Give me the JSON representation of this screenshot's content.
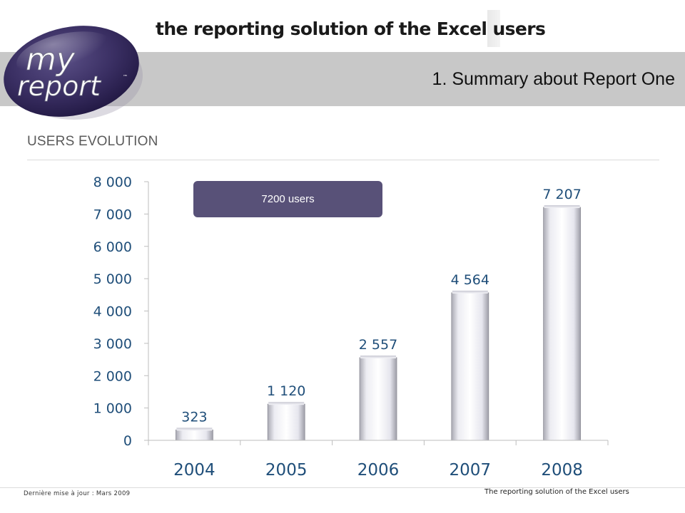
{
  "header": {
    "tagline": "the reporting solution of the Excel users",
    "page_title": "1. Summary about Report One",
    "logo": {
      "line1": "my",
      "line2": "report",
      "trademark": "™"
    }
  },
  "section": {
    "title": "USERS EVOLUTION"
  },
  "callout": {
    "text": "7200 users"
  },
  "colors": {
    "header_band": "#c8c8c8",
    "logo_purple": "#2e2350",
    "callout": "#585178",
    "axis_text": "#1f4e79"
  },
  "chart_data": {
    "type": "bar",
    "categories": [
      "2004",
      "2005",
      "2006",
      "2007",
      "2008"
    ],
    "values": [
      323,
      1120,
      2557,
      4564,
      7207
    ],
    "value_labels": [
      "323",
      "1 120",
      "2 557",
      "4 564",
      "7 207"
    ],
    "ylim": [
      0,
      8000
    ],
    "y_ticks": [
      0,
      1000,
      2000,
      3000,
      4000,
      5000,
      6000,
      7000,
      8000
    ],
    "y_tick_labels": [
      "0",
      "1 000",
      "2 000",
      "3 000",
      "4 000",
      "5 000",
      "6 000",
      "7 000",
      "8 000"
    ],
    "grid": false,
    "legend": "none"
  },
  "footer": {
    "last_update": "Dernière mise à jour : Mars 2009",
    "tagline": "The reporting solution of the Excel users"
  }
}
